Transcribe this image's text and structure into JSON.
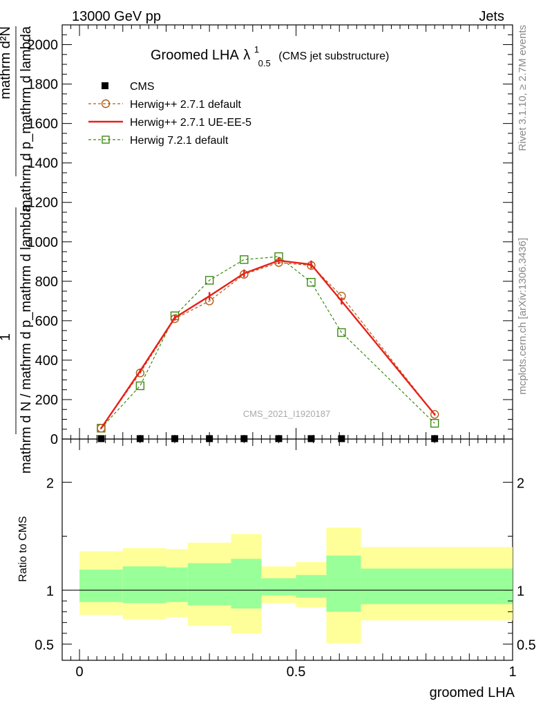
{
  "header": {
    "left": "13000 GeV pp",
    "right": "Jets"
  },
  "side_labels": {
    "rivet": "Rivet 3.1.10, ≥ 2.7M events",
    "mcplots": "mcplots.cern.ch [arXiv:1306.3436]"
  },
  "colors": {
    "cms": "#000000",
    "herwig_default": "#b25a10",
    "herwig_ueee5": "#e8201a",
    "herwig7": "#3a8a10",
    "band_inner": "#99ff99",
    "band_outer": "#ffff99"
  },
  "chart_data": [
    {
      "type": "line",
      "title": "Groomed LHA",
      "title_symbol": "λ",
      "title_sup": "1",
      "title_sub": "0.5",
      "title_note": "(CMS jet substructure)",
      "ylabel_top": "mathrm d²N",
      "ylabel_mid": "mathrm d p_mathrm d lambda",
      "ylabel_one": "1",
      "ylabel_den": "mathrm d N / mathrm d p_mathrm d lambda",
      "analysis_tag": "CMS_2021_I1920187",
      "xlim": [
        -0.04,
        1.0
      ],
      "ylim": [
        0,
        2100
      ],
      "yticks": [
        0,
        200,
        400,
        600,
        800,
        1000,
        1200,
        1400,
        1600,
        1800,
        2000
      ],
      "ytick_labels": [
        "0",
        "200",
        "400",
        "600",
        "800",
        "1000",
        "1200",
        "1400",
        "1600",
        "1800",
        "2000"
      ],
      "x_bin_edges": [
        0.0,
        0.1,
        0.2,
        0.25,
        0.35,
        0.42,
        0.5,
        0.57,
        0.65,
        1.0
      ],
      "series": [
        {
          "name": "CMS",
          "style": "marker",
          "x": [
            0.05,
            0.14,
            0.22,
            0.3,
            0.38,
            0.46,
            0.535,
            0.605,
            0.82
          ],
          "y": [
            2,
            2,
            2,
            2,
            2,
            2,
            2,
            2,
            2
          ]
        },
        {
          "name": "Herwig++ 2.7.1 default",
          "style": "dashed-circle",
          "x": [
            0.05,
            0.14,
            0.22,
            0.3,
            0.38,
            0.46,
            0.535,
            0.605,
            0.82
          ],
          "y": [
            55,
            335,
            610,
            700,
            835,
            895,
            880,
            725,
            125
          ]
        },
        {
          "name": "Herwig++ 2.7.1 UE-EE-5",
          "style": "solid",
          "x": [
            0.05,
            0.14,
            0.22,
            0.3,
            0.38,
            0.46,
            0.535,
            0.605,
            0.82
          ],
          "y": [
            55,
            345,
            615,
            725,
            840,
            905,
            885,
            700,
            125
          ],
          "err": [
            5,
            12,
            14,
            20,
            20,
            18,
            20,
            18,
            6
          ]
        },
        {
          "name": "Herwig 7.2.1 default",
          "style": "dashed-square",
          "x": [
            0.05,
            0.14,
            0.22,
            0.3,
            0.38,
            0.46,
            0.535,
            0.605,
            0.82
          ],
          "y": [
            55,
            270,
            625,
            805,
            910,
            925,
            795,
            540,
            80
          ]
        }
      ]
    },
    {
      "type": "area",
      "ylabel": "Ratio to CMS",
      "xlabel": "groomed LHA",
      "xlim": [
        -0.04,
        1.0
      ],
      "ylim": [
        0.35,
        2.4
      ],
      "yticks": [
        0.5,
        1,
        2
      ],
      "ytick_labels": [
        "0.5",
        "1",
        "2"
      ],
      "xticks": [
        0,
        0.5,
        1
      ],
      "xtick_labels": [
        "0",
        "0.5",
        "1"
      ],
      "reference": 1,
      "bands": [
        {
          "x": [
            0.0,
            0.1
          ],
          "inner": [
            0.89,
            1.19
          ],
          "outer": [
            0.77,
            1.36
          ]
        },
        {
          "x": [
            0.1,
            0.2
          ],
          "inner": [
            0.88,
            1.22
          ],
          "outer": [
            0.73,
            1.39
          ]
        },
        {
          "x": [
            0.2,
            0.25
          ],
          "inner": [
            0.89,
            1.21
          ],
          "outer": [
            0.75,
            1.38
          ]
        },
        {
          "x": [
            0.25,
            0.35
          ],
          "inner": [
            0.86,
            1.25
          ],
          "outer": [
            0.67,
            1.44
          ]
        },
        {
          "x": [
            0.35,
            0.42
          ],
          "inner": [
            0.83,
            1.29
          ],
          "outer": [
            0.6,
            1.52
          ]
        },
        {
          "x": [
            0.42,
            0.5
          ],
          "inner": [
            0.95,
            1.11
          ],
          "outer": [
            0.88,
            1.22
          ]
        },
        {
          "x": [
            0.5,
            0.57
          ],
          "inner": [
            0.93,
            1.14
          ],
          "outer": [
            0.84,
            1.26
          ]
        },
        {
          "x": [
            0.57,
            0.65
          ],
          "inner": [
            0.8,
            1.32
          ],
          "outer": [
            0.51,
            1.58
          ]
        },
        {
          "x": [
            0.65,
            1.0
          ],
          "inner": [
            0.87,
            1.2
          ],
          "outer": [
            0.72,
            1.4
          ]
        }
      ]
    }
  ]
}
